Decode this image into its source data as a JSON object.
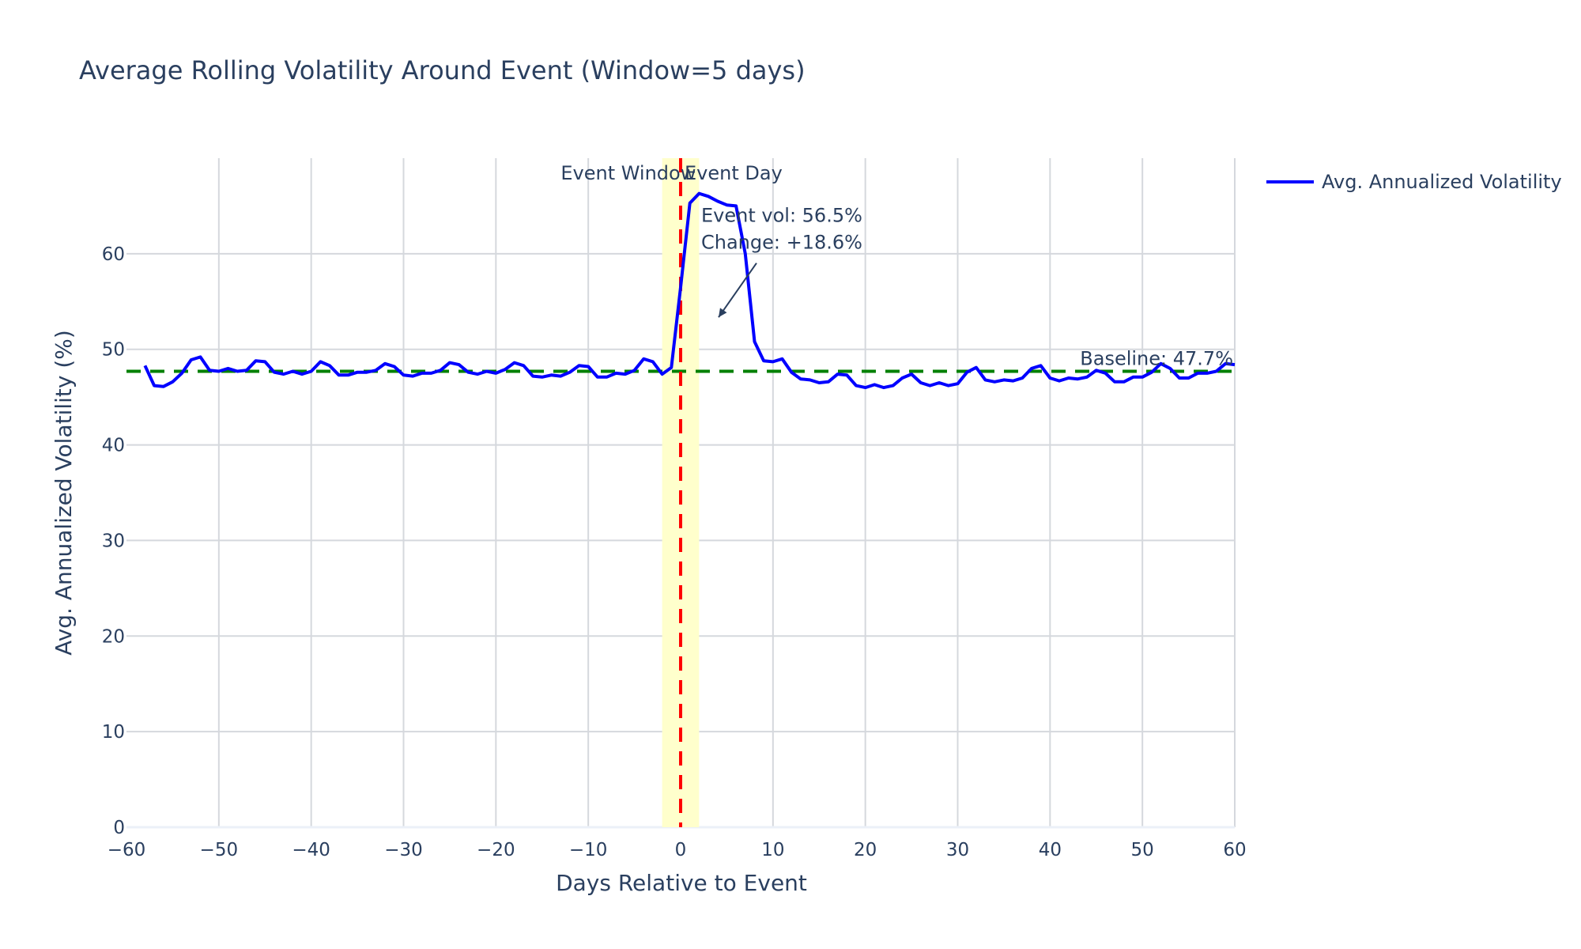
{
  "chart_data": {
    "type": "line",
    "title": "Average Rolling Volatility Around Event (Window=5 days)",
    "xlabel": "Days Relative to Event",
    "ylabel": "Avg. Annualized Volatility (%)",
    "xlim": [
      -60,
      60
    ],
    "ylim": [
      0,
      70
    ],
    "xticks": [
      -60,
      -50,
      -40,
      -30,
      -20,
      -10,
      0,
      10,
      20,
      30,
      40,
      50,
      60
    ],
    "yticks": [
      0,
      10,
      20,
      30,
      40,
      50,
      60
    ],
    "xtick_labels": [
      "−60",
      "−50",
      "−40",
      "−30",
      "−20",
      "−10",
      "0",
      "10",
      "20",
      "30",
      "40",
      "50",
      "60"
    ],
    "ytick_labels": [
      "0",
      "10",
      "20",
      "30",
      "40",
      "50",
      "60"
    ],
    "grid": true,
    "legend_position": "top-right",
    "series": [
      {
        "name": "Avg. Annualized Volatility",
        "color": "#0000ff",
        "x": [
          -58,
          -57,
          -56,
          -55,
          -54,
          -53,
          -52,
          -51,
          -50,
          -49,
          -48,
          -47,
          -46,
          -45,
          -44,
          -43,
          -42,
          -41,
          -40,
          -39,
          -38,
          -37,
          -36,
          -35,
          -34,
          -33,
          -32,
          -31,
          -30,
          -29,
          -28,
          -27,
          -26,
          -25,
          -24,
          -23,
          -22,
          -21,
          -20,
          -19,
          -18,
          -17,
          -16,
          -15,
          -14,
          -13,
          -12,
          -11,
          -10,
          -9,
          -8,
          -7,
          -6,
          -5,
          -4,
          -3,
          -2,
          -1,
          0,
          1,
          2,
          3,
          4,
          5,
          6,
          7,
          8,
          9,
          10,
          11,
          12,
          13,
          14,
          15,
          16,
          17,
          18,
          19,
          20,
          21,
          22,
          23,
          24,
          25,
          26,
          27,
          28,
          29,
          30,
          31,
          32,
          33,
          34,
          35,
          36,
          37,
          38,
          39,
          40,
          41,
          42,
          43,
          44,
          45,
          46,
          47,
          48,
          49,
          50,
          51,
          52,
          53,
          54,
          55,
          56,
          57,
          58,
          59,
          60
        ],
        "y": [
          48.3,
          46.2,
          46.1,
          46.6,
          47.5,
          48.9,
          49.2,
          47.8,
          47.7,
          48.0,
          47.7,
          47.8,
          48.8,
          48.7,
          47.6,
          47.4,
          47.7,
          47.4,
          47.7,
          48.7,
          48.3,
          47.3,
          47.3,
          47.6,
          47.6,
          47.8,
          48.5,
          48.2,
          47.3,
          47.2,
          47.5,
          47.5,
          47.8,
          48.6,
          48.4,
          47.6,
          47.4,
          47.7,
          47.5,
          47.9,
          48.6,
          48.3,
          47.2,
          47.1,
          47.3,
          47.2,
          47.6,
          48.3,
          48.2,
          47.1,
          47.1,
          47.5,
          47.4,
          47.8,
          49.0,
          48.7,
          47.4,
          48.1,
          56.5,
          65.3,
          66.3,
          66.0,
          65.5,
          65.1,
          65.0,
          60.0,
          50.8,
          48.8,
          48.7,
          49.0,
          47.6,
          46.9,
          46.8,
          46.5,
          46.6,
          47.4,
          47.3,
          46.2,
          46.0,
          46.3,
          46.0,
          46.2,
          47.0,
          47.4,
          46.5,
          46.2,
          46.5,
          46.2,
          46.4,
          47.6,
          48.1,
          46.8,
          46.6,
          46.8,
          46.7,
          47.0,
          48.0,
          48.3,
          47.0,
          46.7,
          47.0,
          46.9,
          47.1,
          47.8,
          47.5,
          46.6,
          46.6,
          47.1,
          47.1,
          47.6,
          48.5,
          48.0,
          47.0,
          47.0,
          47.5,
          47.5,
          47.7,
          48.5,
          48.4
        ]
      }
    ],
    "baseline": {
      "value": 47.7,
      "label": "Baseline: 47.7%",
      "color": "#008000"
    },
    "event_line": {
      "x": 0,
      "label": "Event Day",
      "color": "#ff0000"
    },
    "event_window": {
      "x0": -2,
      "x1": 2,
      "label": "Event Window",
      "color": "#ffffcc"
    },
    "event_annotation": {
      "line1": "Event vol: 56.5%",
      "line2": "Change: +18.6%"
    }
  }
}
